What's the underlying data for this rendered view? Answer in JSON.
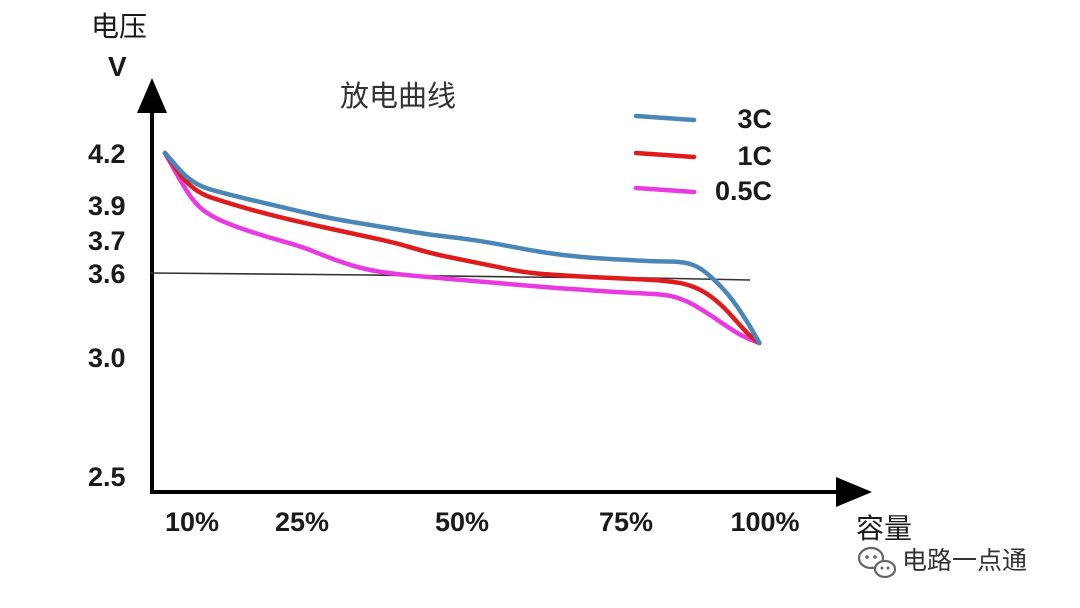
{
  "chart_data": {
    "type": "line",
    "title": "放电曲线",
    "ylabel": "电压",
    "yunit": "V",
    "xlabel": "容量",
    "x_ticks": [
      "10%",
      "25%",
      "50%",
      "75%",
      "100%"
    ],
    "y_ticks": [
      "4.2",
      "3.9",
      "3.7",
      "3.6",
      "3.0",
      "2.5"
    ],
    "reference_line": {
      "y": 3.6
    },
    "legend_position": "top-right",
    "series": [
      {
        "name": "3C",
        "color": "#4a86b8",
        "points": [
          [
            8,
            4.2
          ],
          [
            10,
            4.02
          ],
          [
            15,
            3.96
          ],
          [
            20,
            3.91
          ],
          [
            25,
            3.86
          ],
          [
            30,
            3.82
          ],
          [
            35,
            3.79
          ],
          [
            40,
            3.76
          ],
          [
            45,
            3.73
          ],
          [
            50,
            3.71
          ],
          [
            55,
            3.69
          ],
          [
            60,
            3.67
          ],
          [
            65,
            3.655
          ],
          [
            70,
            3.645
          ],
          [
            75,
            3.64
          ],
          [
            80,
            3.635
          ],
          [
            85,
            3.635
          ],
          [
            88,
            3.62
          ],
          [
            91,
            3.55
          ],
          [
            94,
            3.42
          ],
          [
            97,
            3.24
          ],
          [
            99,
            3.1
          ]
        ]
      },
      {
        "name": "1C",
        "color": "#e01b1b",
        "points": [
          [
            8,
            4.2
          ],
          [
            10,
            3.98
          ],
          [
            15,
            3.91
          ],
          [
            20,
            3.85
          ],
          [
            25,
            3.8
          ],
          [
            30,
            3.76
          ],
          [
            35,
            3.72
          ],
          [
            40,
            3.69
          ],
          [
            45,
            3.66
          ],
          [
            50,
            3.64
          ],
          [
            55,
            3.62
          ],
          [
            60,
            3.6
          ],
          [
            65,
            3.585
          ],
          [
            70,
            3.57
          ],
          [
            75,
            3.56
          ],
          [
            80,
            3.55
          ],
          [
            83,
            3.54
          ],
          [
            86,
            3.52
          ],
          [
            89,
            3.47
          ],
          [
            92,
            3.38
          ],
          [
            95,
            3.25
          ],
          [
            97,
            3.16
          ],
          [
            99,
            3.1
          ]
        ]
      },
      {
        "name": "0.5C",
        "color": "#e83ae0",
        "points": [
          [
            8,
            4.2
          ],
          [
            9,
            4.06
          ],
          [
            10,
            3.93
          ],
          [
            12,
            3.85
          ],
          [
            15,
            3.79
          ],
          [
            20,
            3.72
          ],
          [
            25,
            3.68
          ],
          [
            30,
            3.64
          ],
          [
            35,
            3.61
          ],
          [
            40,
            3.59
          ],
          [
            45,
            3.57
          ],
          [
            50,
            3.55
          ],
          [
            55,
            3.53
          ],
          [
            60,
            3.51
          ],
          [
            65,
            3.49
          ],
          [
            70,
            3.475
          ],
          [
            75,
            3.46
          ],
          [
            80,
            3.45
          ],
          [
            83,
            3.44
          ],
          [
            86,
            3.4
          ],
          [
            89,
            3.33
          ],
          [
            92,
            3.25
          ],
          [
            95,
            3.17
          ],
          [
            97,
            3.13
          ],
          [
            99,
            3.1
          ]
        ]
      }
    ]
  },
  "watermark": {
    "text": "电路一点通",
    "icon": "wechat-icon"
  }
}
